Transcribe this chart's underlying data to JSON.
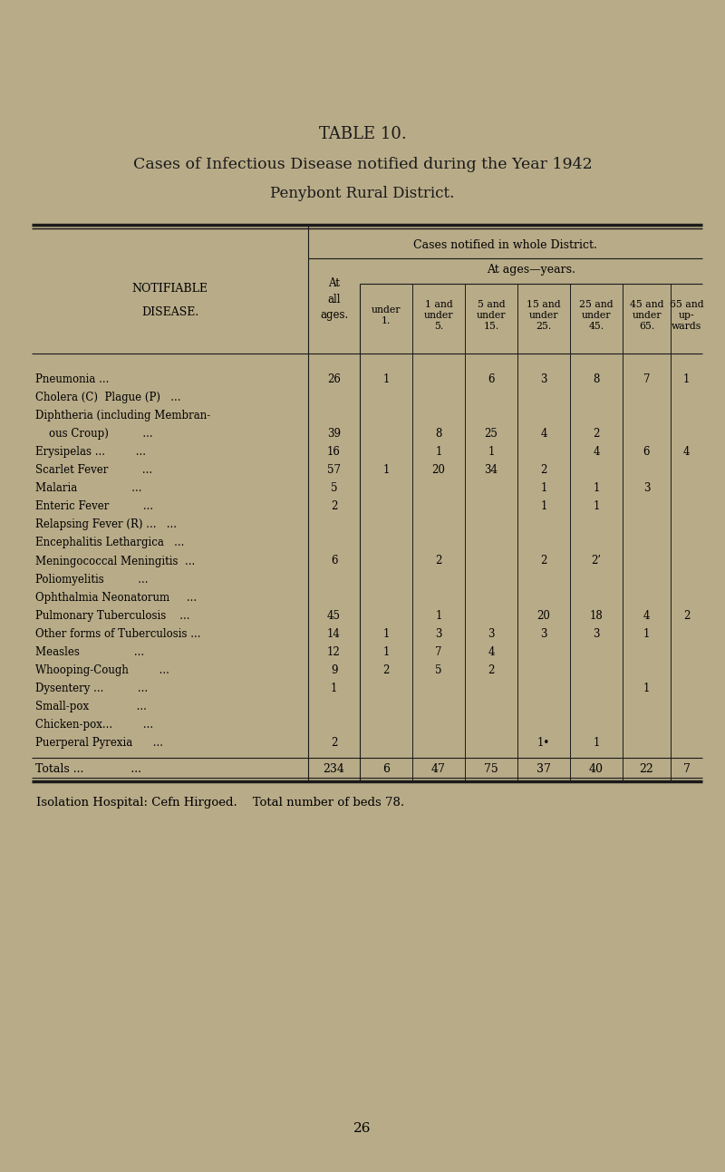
{
  "title1": "TABLE 10.",
  "title2": "Cases of Infectious Disease notified during the Year 1942",
  "title3": "Penybont Rural District.",
  "bg_color": "#b8ab88",
  "rows": [
    [
      "Pneumonia ...",
      "...",
      "...",
      "26",
      "1",
      "",
      "6",
      "3",
      "8",
      "7",
      "1"
    ],
    [
      "Cholera (C)  Plague (P)",
      "...",
      "",
      "",
      "",
      "",
      "",
      "",
      "",
      "",
      ""
    ],
    [
      "Diphtheria (including Membran-",
      "",
      "",
      "",
      "",
      "",
      "",
      "",
      "",
      "",
      ""
    ],
    [
      "    ous Croup)",
      "...",
      "...",
      "39",
      "",
      "8",
      "25",
      "4",
      "2",
      "",
      ""
    ],
    [
      "Erysipelas ...",
      "...",
      "...",
      "16",
      "",
      "1",
      "1",
      "",
      "4",
      "6",
      "4"
    ],
    [
      "Scarlet Fever",
      "...",
      "...",
      "57",
      "1",
      "20",
      "34",
      "2",
      "",
      "",
      ""
    ],
    [
      "Malaria",
      "...",
      "...",
      "5",
      "",
      "",
      "",
      "1",
      "1",
      "3",
      ""
    ],
    [
      "Enteric Fever",
      "...",
      "...",
      "2",
      "",
      "",
      "",
      "1",
      "1",
      "",
      ""
    ],
    [
      "Relapsing Fever (R) ...",
      "...",
      "",
      "",
      "",
      "",
      "",
      "",
      "",
      "",
      ""
    ],
    [
      "Encephalitis Lethargica",
      "...",
      "",
      "",
      "",
      "",
      "",
      "",
      "",
      "",
      ""
    ],
    [
      "Meningococcal Meningitis",
      "...",
      "6",
      "",
      "",
      "2",
      "",
      "2",
      "2’",
      "",
      ""
    ],
    [
      "Poliomyelitis",
      "...",
      "...",
      "",
      "",
      "",
      "",
      "",
      "",
      "",
      ""
    ],
    [
      "Ophthalmia Neonatorum",
      "...",
      "",
      "",
      "",
      "",
      "",
      "",
      "",
      "",
      ""
    ],
    [
      "Pulmonary Tuberculosis",
      "...",
      "45",
      "",
      "",
      "1",
      "",
      "20",
      "18",
      "4",
      "2"
    ],
    [
      "Other forms of Tuberculosis",
      "...",
      "14",
      "1",
      "3",
      "3",
      "3",
      "3",
      "1",
      "",
      ""
    ],
    [
      "Measles",
      "...",
      "...",
      "12",
      "1",
      "7",
      "4",
      "",
      "",
      "",
      ""
    ],
    [
      "Whooping-Cough",
      "...",
      "...",
      "9",
      "2",
      "5",
      "2",
      "",
      "",
      "",
      ""
    ],
    [
      "Dysentery ...",
      "...",
      "...",
      "1",
      "",
      "",
      "",
      "",
      "",
      "1",
      ""
    ],
    [
      "Small-pox",
      "...",
      "...",
      "",
      "",
      "",
      "",
      "",
      "",
      "",
      ""
    ],
    [
      "Chicken-pox...",
      "...",
      "...",
      "",
      "",
      "",
      "",
      "",
      "",
      "",
      ""
    ],
    [
      "Puerperal Pyrexia",
      "...",
      "...",
      "2",
      "",
      "",
      "",
      "1•",
      "1",
      "",
      ""
    ],
    [
      "Totals ...",
      "...",
      "...",
      "234",
      "6",
      "47",
      "75",
      "37",
      "40",
      "22",
      "7"
    ]
  ],
  "footer": "Isolation Hospital: Cefn Hirgoed.    Total number of beds 78.",
  "page_number": "26"
}
